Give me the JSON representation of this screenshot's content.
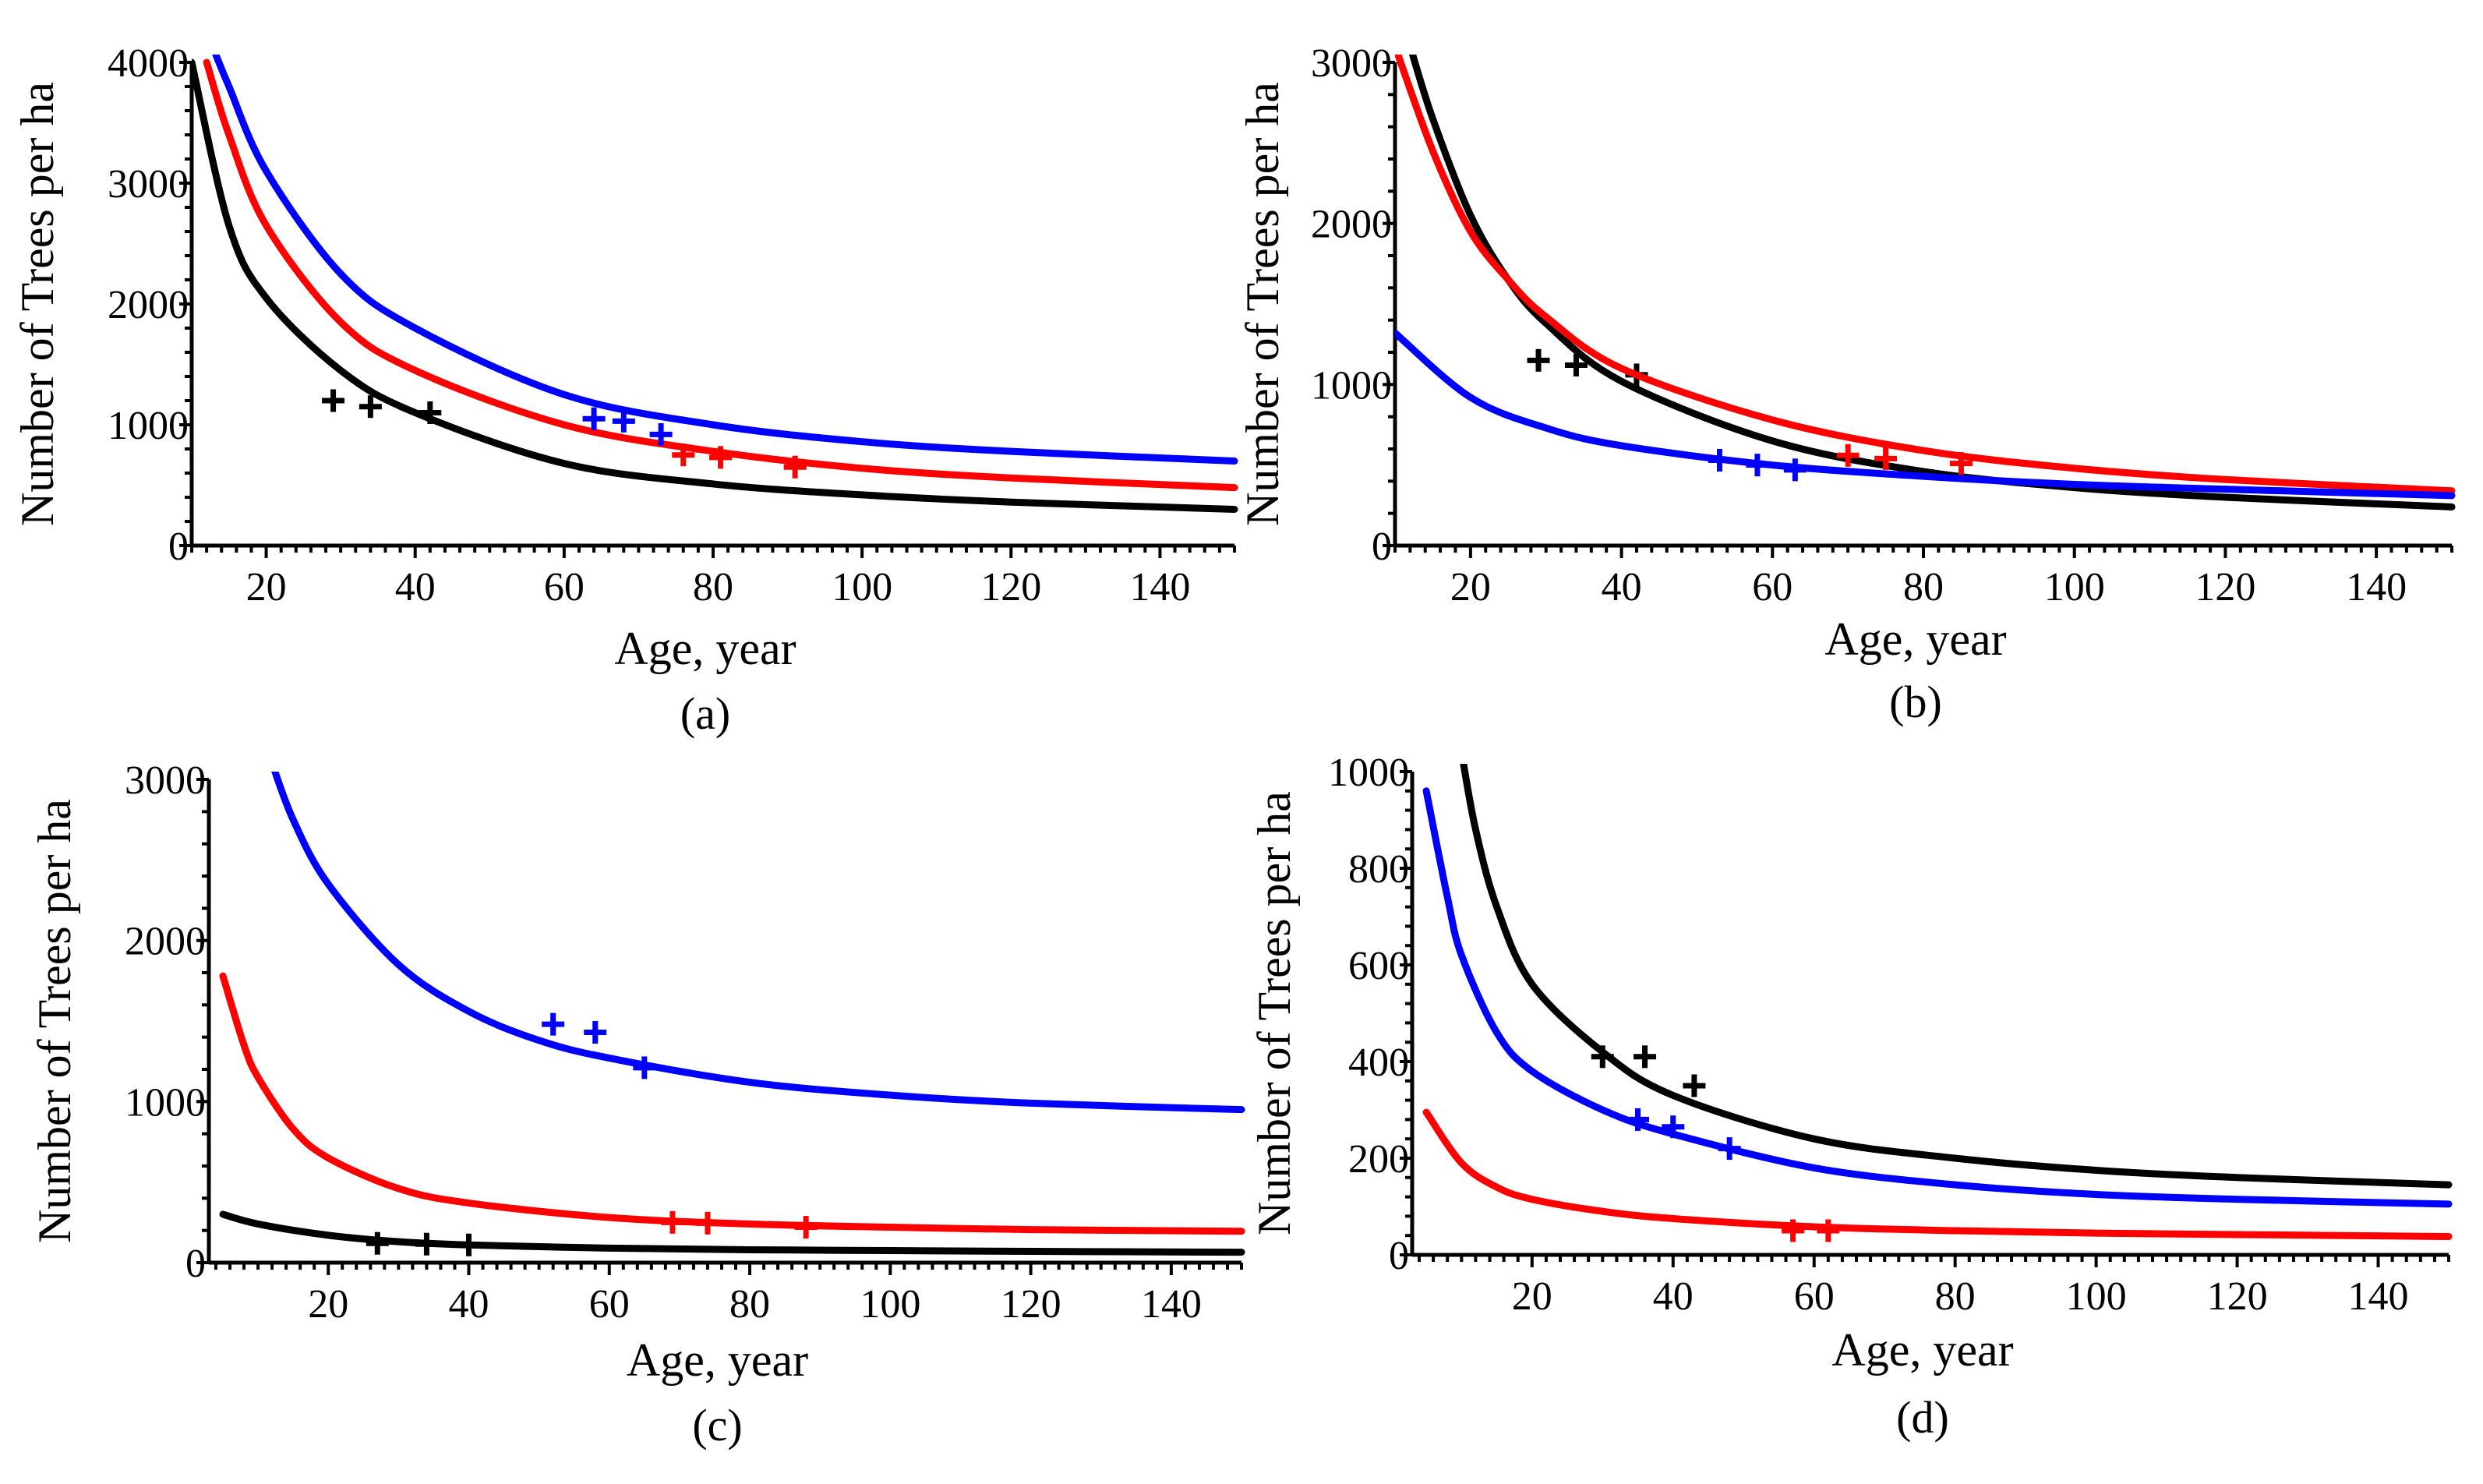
{
  "figure": {
    "panel_count": 4
  },
  "chart_data": [
    {
      "type": "line",
      "panel_label": "(a)",
      "xlabel": "Age, year",
      "ylabel": "Number of Trees per ha",
      "xlim": [
        10,
        150
      ],
      "ylim": [
        0,
        4000
      ],
      "xticks": [
        20,
        40,
        60,
        80,
        100,
        120,
        140
      ],
      "yticks": [
        0,
        1000,
        2000,
        3000,
        4000
      ],
      "series": [
        {
          "name": "black",
          "color": "#000000",
          "curve": {
            "x": [
              10,
              15,
              20,
              30,
              40,
              60,
              80,
              100,
              120,
              150
            ],
            "y": [
              4000,
              2650,
              2050,
              1450,
              1100,
              680,
              510,
              420,
              360,
              300
            ]
          },
          "points": {
            "x": [
              29,
              34,
              42
            ],
            "y": [
              1200,
              1150,
              1100
            ]
          }
        },
        {
          "name": "red",
          "color": "#ff0000",
          "curve": {
            "x": [
              12,
              15,
              20,
              30,
              40,
              60,
              80,
              100,
              120,
              150
            ],
            "y": [
              4000,
              3400,
              2650,
              1850,
              1450,
              1000,
              780,
              640,
              560,
              480
            ]
          },
          "points": {
            "x": [
              76,
              81,
              91
            ],
            "y": [
              750,
              730,
              650
            ]
          }
        },
        {
          "name": "blue",
          "color": "#0000ff",
          "curve": {
            "x": [
              13,
              15,
              20,
              30,
              40,
              60,
              80,
              100,
              120,
              150
            ],
            "y": [
              4100,
              3800,
              3100,
              2250,
              1800,
              1250,
              1000,
              860,
              780,
              700
            ]
          },
          "points": {
            "x": [
              64,
              68,
              73
            ],
            "y": [
              1050,
              1030,
              920
            ]
          }
        }
      ]
    },
    {
      "type": "line",
      "panel_label": "(b)",
      "xlabel": "Age, year",
      "ylabel": "Number of Trees per ha",
      "xlim": [
        10,
        150
      ],
      "ylim": [
        0,
        3000
      ],
      "xticks": [
        20,
        40,
        60,
        80,
        100,
        120,
        140
      ],
      "yticks": [
        0,
        1000,
        2000,
        3000
      ],
      "series": [
        {
          "name": "black",
          "color": "#000000",
          "curve": {
            "x": [
              12,
              15,
              20,
              25,
              30,
              40,
              60,
              80,
              100,
              120,
              150
            ],
            "y": [
              3100,
              2650,
              2050,
              1650,
              1380,
              1020,
              650,
              460,
              360,
              300,
              240
            ]
          },
          "points": {
            "x": [
              29,
              34,
              42
            ],
            "y": [
              1150,
              1120,
              1060
            ]
          }
        },
        {
          "name": "red",
          "color": "#ff0000",
          "curve": {
            "x": [
              10,
              15,
              20,
              25,
              30,
              40,
              60,
              80,
              100,
              120,
              150
            ],
            "y": [
              3100,
              2450,
              1950,
              1650,
              1420,
              1100,
              780,
              590,
              480,
              410,
              340
            ]
          },
          "points": {
            "x": [
              70,
              75,
              85
            ],
            "y": [
              560,
              540,
              510
            ]
          }
        },
        {
          "name": "blue",
          "color": "#0000ff",
          "curve": {
            "x": [
              10,
              20,
              30,
              40,
              60,
              80,
              100,
              120,
              150
            ],
            "y": [
              1320,
              920,
              730,
              620,
              500,
              430,
              380,
              350,
              310
            ]
          },
          "points": {
            "x": [
              53,
              58,
              63
            ],
            "y": [
              530,
              500,
              470
            ]
          }
        }
      ]
    },
    {
      "type": "line",
      "panel_label": "(c)",
      "xlabel": "Age, year",
      "ylabel": "Number of Trees per ha",
      "xlim": [
        3,
        150
      ],
      "ylim": [
        0,
        3000
      ],
      "xticks": [
        20,
        40,
        60,
        80,
        100,
        120,
        140
      ],
      "yticks": [
        0,
        1000,
        2000,
        3000
      ],
      "series": [
        {
          "name": "black",
          "color": "#000000",
          "curve": {
            "x": [
              5,
              10,
              20,
              30,
              40,
              60,
              80,
              100,
              120,
              150
            ],
            "y": [
              300,
              240,
              170,
              130,
              110,
              90,
              80,
              75,
              70,
              65
            ]
          },
          "points": {
            "x": [
              27,
              34,
              40
            ],
            "y": [
              120,
              115,
              110
            ]
          }
        },
        {
          "name": "red",
          "color": "#ff0000",
          "curve": {
            "x": [
              5,
              8,
              10,
              15,
              20,
              30,
              40,
              60,
              80,
              100,
              120,
              150
            ],
            "y": [
              1780,
              1350,
              1150,
              830,
              650,
              460,
              370,
              280,
              240,
              220,
              205,
              195
            ]
          },
          "points": {
            "x": [
              69,
              74,
              88
            ],
            "y": [
              250,
              245,
              220
            ]
          }
        },
        {
          "name": "blue",
          "color": "#0000ff",
          "curve": {
            "x": [
              12,
              15,
              20,
              30,
              40,
              50,
              60,
              80,
              100,
              120,
              150
            ],
            "y": [
              3100,
              2750,
              2350,
              1850,
              1560,
              1380,
              1270,
              1120,
              1040,
              990,
              950
            ]
          },
          "points": {
            "x": [
              52,
              58,
              65
            ],
            "y": [
              1480,
              1430,
              1210
            ]
          }
        }
      ]
    },
    {
      "type": "line",
      "panel_label": "(d)",
      "xlabel": "Age, year",
      "ylabel": "Number of Trees per ha",
      "xlim": [
        3,
        150
      ],
      "ylim": [
        0,
        1000
      ],
      "xticks": [
        20,
        40,
        60,
        80,
        100,
        120,
        140
      ],
      "yticks": [
        0,
        200,
        400,
        600,
        800,
        1000
      ],
      "series": [
        {
          "name": "black",
          "color": "#000000",
          "curve": {
            "x": [
              10,
              12,
              15,
              20,
              30,
              40,
              60,
              80,
              100,
              120,
              150
            ],
            "y": [
              1040,
              880,
              720,
              560,
              420,
              330,
              240,
              200,
              175,
              160,
              145
            ]
          },
          "points": {
            "x": [
              30,
              36,
              43
            ],
            "y": [
              410,
              410,
              350
            ]
          }
        },
        {
          "name": "blue",
          "color": "#0000ff",
          "curve": {
            "x": [
              5,
              8,
              10,
              15,
              20,
              30,
              40,
              60,
              80,
              100,
              120,
              150
            ],
            "y": [
              960,
              740,
              620,
              460,
              380,
              300,
              250,
              180,
              145,
              125,
              115,
              105
            ]
          },
          "points": {
            "x": [
              35,
              40,
              48
            ],
            "y": [
              280,
              265,
              220
            ]
          }
        },
        {
          "name": "red",
          "color": "#ff0000",
          "curve": {
            "x": [
              5,
              10,
              15,
              20,
              30,
              40,
              60,
              80,
              100,
              120,
              150
            ],
            "y": [
              295,
              190,
              140,
              115,
              90,
              75,
              58,
              50,
              45,
              42,
              38
            ]
          },
          "points": {
            "x": [
              57,
              62
            ],
            "y": [
              50,
              50
            ]
          }
        }
      ]
    }
  ]
}
